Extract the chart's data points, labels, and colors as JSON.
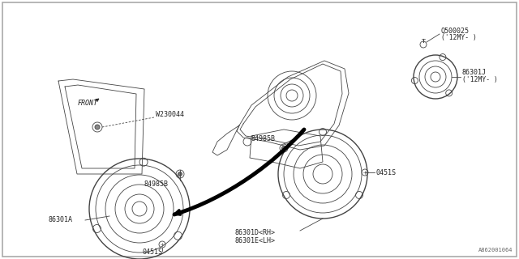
{
  "bg_color": "#ffffff",
  "labels": {
    "front": "FRONT",
    "W230044": "W230044",
    "84985B_top": "84985B",
    "84985B_bot": "84985B",
    "0451S_top": "0451S",
    "0451S_bot": "0451S",
    "86301A": "86301A",
    "86301D": "86301D<RH>",
    "86301E": "86301E<LH>",
    "Q500025": "Q500025",
    "Q500025_sub": "('12MY- )",
    "86301J": "86301J",
    "86301J_sub": "('12MY- )",
    "diagram_id": "A862001064"
  },
  "line_color": "#444444",
  "text_color": "#222222",
  "thin_line": 0.6,
  "medium_line": 1.0,
  "thick_line": 3.0
}
